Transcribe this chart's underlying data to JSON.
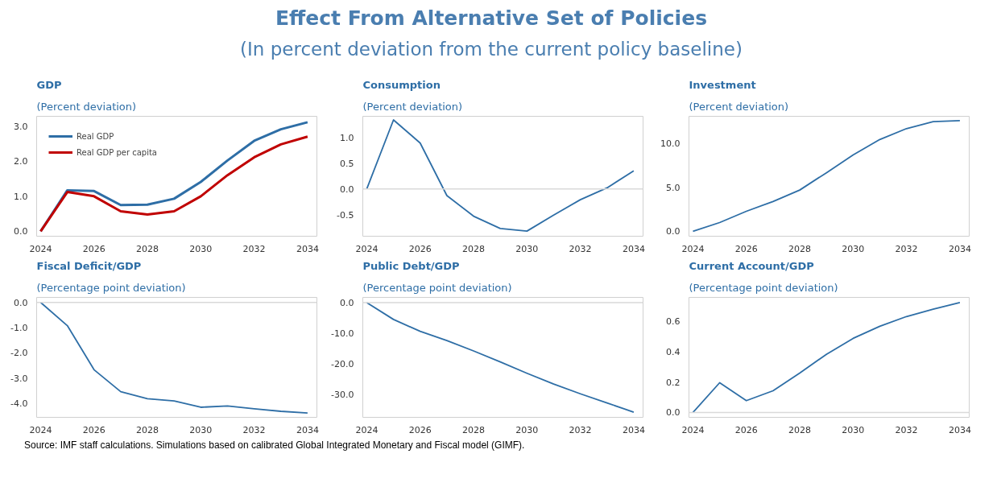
{
  "chart_data": [
    {
      "type": "other",
      "title": "Effect From Alternative Set of Policies",
      "subtitle": "(In percent deviation from the current policy baseline)",
      "annotations": [
        "Source: IMF staff calculations. Simulations based on calibrated Global Integrated Monetary and Fiscal model (GIMF)."
      ]
    },
    {
      "type": "line",
      "title": "GDP",
      "subtitle": "(Percent deviation)",
      "x": [
        2024,
        2025,
        2026,
        2027,
        2028,
        2029,
        2030,
        2031,
        2032,
        2033,
        2034
      ],
      "xlim": [
        2023.85,
        2034.35
      ],
      "xticks": [
        2024,
        2026,
        2028,
        2030,
        2032,
        2034
      ],
      "ylim": [
        -0.14,
        3.28
      ],
      "yticks": [
        {
          "value": 0,
          "label": "0.0"
        },
        {
          "value": 1,
          "label": "1.0"
        },
        {
          "value": 2,
          "label": "2.0"
        },
        {
          "value": 3,
          "label": "3.0"
        }
      ],
      "legend": "top left",
      "series": [
        {
          "name": "Real GDP",
          "color": "#2e6ea6",
          "values": [
            0,
            1.17,
            1.15,
            0.75,
            0.76,
            0.93,
            1.41,
            2.02,
            2.58,
            2.91,
            3.11
          ]
        },
        {
          "name": "Real GDP per capita",
          "color": "#c00000",
          "values": [
            0,
            1.12,
            1.0,
            0.57,
            0.48,
            0.57,
            1.0,
            1.6,
            2.11,
            2.48,
            2.7
          ]
        }
      ]
    },
    {
      "type": "line",
      "title": "Consumption",
      "subtitle": "(Percent deviation)",
      "x": [
        2024,
        2025,
        2026,
        2027,
        2028,
        2029,
        2030,
        2031,
        2032,
        2033,
        2034
      ],
      "xlim": [
        2023.85,
        2034.35
      ],
      "xticks": [
        2024,
        2026,
        2028,
        2030,
        2032,
        2034
      ],
      "ylim": [
        -0.92,
        1.41
      ],
      "yticks": [
        {
          "value": -0.5,
          "label": "-0.5"
        },
        {
          "value": 0,
          "label": "0.0"
        },
        {
          "value": 0.5,
          "label": "0.5"
        },
        {
          "value": 1,
          "label": "1.0"
        }
      ],
      "ref_lines": [
        {
          "axis": "y",
          "value": 0,
          "color": "#d9d9d9"
        }
      ],
      "series": [
        {
          "color": "#2e6ea6",
          "values": [
            0,
            1.34,
            0.89,
            -0.13,
            -0.53,
            -0.77,
            -0.82,
            -0.51,
            -0.21,
            0.02,
            0.35
          ]
        }
      ]
    },
    {
      "type": "line",
      "title": "Investment",
      "subtitle": "(Percent deviation)",
      "x": [
        2024,
        2025,
        2026,
        2027,
        2028,
        2029,
        2030,
        2031,
        2032,
        2033,
        2034
      ],
      "xlim": [
        2023.85,
        2034.35
      ],
      "xticks": [
        2024,
        2026,
        2028,
        2030,
        2032,
        2034
      ],
      "ylim": [
        -0.56,
        13.1
      ],
      "yticks": [
        {
          "value": 0,
          "label": "0.0"
        },
        {
          "value": 5,
          "label": "5.0"
        },
        {
          "value": 10,
          "label": "10.0"
        }
      ],
      "series": [
        {
          "color": "#2e6ea6",
          "values": [
            0,
            1.0,
            2.28,
            3.4,
            4.7,
            6.67,
            8.7,
            10.46,
            11.7,
            12.5,
            12.6
          ]
        }
      ]
    },
    {
      "type": "line",
      "title": "Fiscal Deficit/GDP",
      "subtitle": "(Percentage point deviation)",
      "x": [
        2024,
        2025,
        2026,
        2027,
        2028,
        2029,
        2030,
        2031,
        2032,
        2033,
        2034
      ],
      "xlim": [
        2023.85,
        2034.35
      ],
      "xticks": [
        2024,
        2026,
        2028,
        2030,
        2032,
        2034
      ],
      "ylim": [
        -4.56,
        0.2
      ],
      "yticks": [
        {
          "value": -4,
          "label": "-4.0"
        },
        {
          "value": -3,
          "label": "-3.0"
        },
        {
          "value": -2,
          "label": "-2.0"
        },
        {
          "value": -1,
          "label": "-1.0"
        },
        {
          "value": 0,
          "label": "0.0"
        }
      ],
      "ref_lines": [
        {
          "axis": "y",
          "value": 0,
          "color": "#d9d9d9"
        }
      ],
      "series": [
        {
          "color": "#2e6ea6",
          "values": [
            0,
            -0.92,
            -2.67,
            -3.54,
            -3.82,
            -3.91,
            -4.16,
            -4.11,
            -4.22,
            -4.32,
            -4.39
          ]
        }
      ]
    },
    {
      "type": "line",
      "title": "Public Debt/GDP",
      "subtitle": "(Percentage point deviation)",
      "x": [
        2024,
        2025,
        2026,
        2027,
        2028,
        2029,
        2030,
        2031,
        2032,
        2033,
        2034
      ],
      "xlim": [
        2023.85,
        2034.35
      ],
      "xticks": [
        2024,
        2026,
        2028,
        2030,
        2032,
        2034
      ],
      "ylim": [
        -37.5,
        1.7
      ],
      "yticks": [
        {
          "value": -30,
          "label": "-30.0"
        },
        {
          "value": -20,
          "label": "-20.0"
        },
        {
          "value": -10,
          "label": "-10.0"
        },
        {
          "value": 0,
          "label": "0.0"
        }
      ],
      "ref_lines": [
        {
          "axis": "y",
          "value": 0,
          "color": "#d9d9d9"
        }
      ],
      "series": [
        {
          "color": "#2e6ea6",
          "values": [
            0,
            -5.5,
            -9.4,
            -12.4,
            -15.8,
            -19.4,
            -23.1,
            -26.6,
            -29.8,
            -32.8,
            -35.8
          ]
        }
      ]
    },
    {
      "type": "line",
      "title": "Current Account/GDP",
      "subtitle": "(Percentage point deviation)",
      "x": [
        2024,
        2025,
        2026,
        2027,
        2028,
        2029,
        2030,
        2031,
        2032,
        2033,
        2034
      ],
      "xlim": [
        2023.85,
        2034.35
      ],
      "xticks": [
        2024,
        2026,
        2028,
        2030,
        2032,
        2034
      ],
      "ylim": [
        -0.032,
        0.758
      ],
      "yticks": [
        {
          "value": 0,
          "label": "0.0"
        },
        {
          "value": 0.2,
          "label": "0.2"
        },
        {
          "value": 0.4,
          "label": "0.4"
        },
        {
          "value": 0.6,
          "label": "0.6"
        }
      ],
      "ref_lines": [
        {
          "axis": "y",
          "value": 0,
          "color": "#d9d9d9"
        }
      ],
      "series": [
        {
          "color": "#2e6ea6",
          "values": [
            0,
            0.196,
            0.078,
            0.143,
            0.26,
            0.383,
            0.488,
            0.568,
            0.632,
            0.68,
            0.724
          ]
        }
      ]
    }
  ]
}
